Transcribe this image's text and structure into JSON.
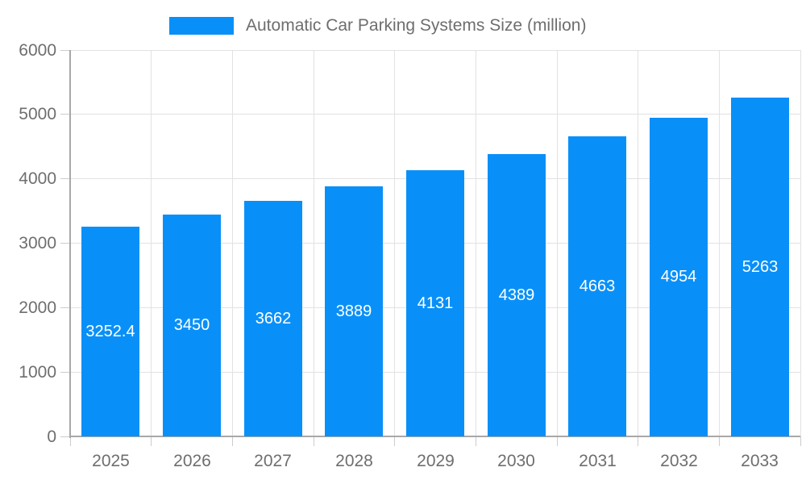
{
  "chart_data": {
    "type": "bar",
    "title": "Automatic Car Parking Systems Size (million)",
    "categories": [
      "2025",
      "2026",
      "2027",
      "2028",
      "2029",
      "2030",
      "2031",
      "2032",
      "2033"
    ],
    "values": [
      3252.4,
      3450,
      3662,
      3889,
      4131,
      4389,
      4663,
      4954,
      5263
    ],
    "value_labels": [
      "3252.4",
      "3450",
      "3662",
      "3889",
      "4131",
      "4389",
      "4663",
      "4954",
      "5263"
    ],
    "series": [
      {
        "name": "Automatic Car Parking Systems Size (million)",
        "values": [
          3252.4,
          3450,
          3662,
          3889,
          4131,
          4389,
          4663,
          4954,
          5263
        ]
      }
    ],
    "xlabel": "",
    "ylabel": "",
    "ylim": [
      0,
      6000
    ],
    "yticks": [
      0,
      1000,
      2000,
      3000,
      4000,
      5000,
      6000
    ],
    "ytick_labels": [
      "0",
      "1000",
      "2000",
      "3000",
      "4000",
      "5000",
      "6000"
    ],
    "grid": "on",
    "legend_position": "top",
    "colors": {
      "bar": "#0990f8",
      "bar_value_text": "#ffffff",
      "axis_text": "#6e6e6e",
      "grid_line": "#e2e2e2",
      "axis_line": "#a8a8a8",
      "tick_line": "#cccccc",
      "background": "#ffffff"
    }
  },
  "legend": {
    "label": "Automatic Car Parking Systems Size (million)",
    "swatch_color": "#0990f8"
  }
}
